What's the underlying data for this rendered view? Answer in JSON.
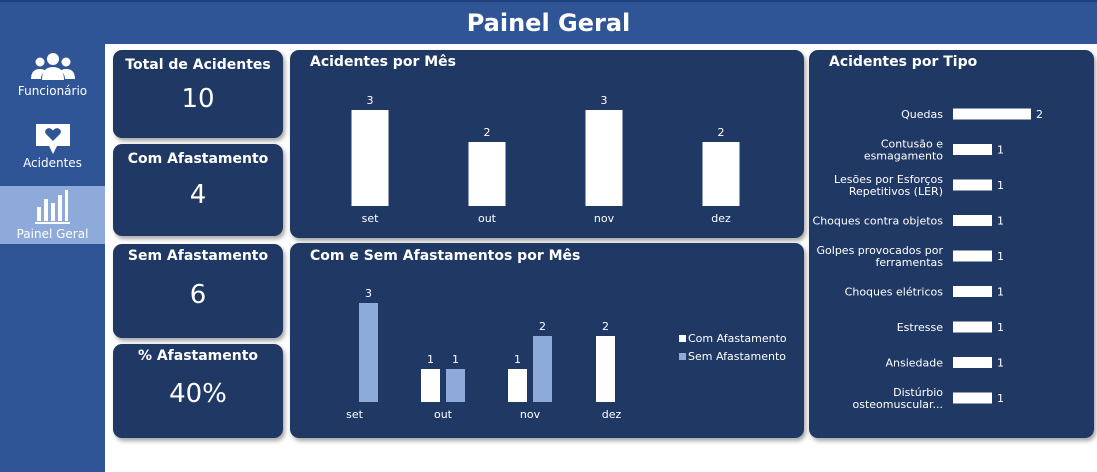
{
  "header": {
    "title": "Painel Geral"
  },
  "sidebar": {
    "items": [
      {
        "label": "Funcionário",
        "icon": "users-icon"
      },
      {
        "label": "Acidentes",
        "icon": "heart-chat-icon"
      },
      {
        "label": "Painel Geral",
        "icon": "bar-chart-icon",
        "active": true
      }
    ]
  },
  "kpis": {
    "total": {
      "title": "Total de Acidentes",
      "value": "10"
    },
    "com": {
      "title": "Com Afastamento",
      "value": "4"
    },
    "sem": {
      "title": "Sem Afastamento",
      "value": "6"
    },
    "pct": {
      "title": "% Afastamento",
      "value": "40%"
    }
  },
  "colors": {
    "header": "#2f5597",
    "card": "#203864",
    "accent_light": "#8eaadb",
    "bar_white": "#ffffff"
  },
  "chart_data": [
    {
      "type": "bar",
      "title": "Acidentes por Mês",
      "categories": [
        "set",
        "out",
        "nov",
        "dez"
      ],
      "values": [
        3,
        2,
        3,
        2
      ],
      "ylim": [
        0,
        3
      ],
      "grid": false
    },
    {
      "type": "bar",
      "title": "Com e Sem Afastamentos por Mês",
      "categories": [
        "set",
        "out",
        "nov",
        "dez"
      ],
      "series": [
        {
          "name": "Com Afastamento",
          "values": [
            null,
            1,
            1,
            2
          ],
          "color": "#ffffff"
        },
        {
          "name": "Sem Afastamento",
          "values": [
            3,
            1,
            2,
            null
          ],
          "color": "#8eaadb"
        }
      ],
      "ylim": [
        0,
        3
      ],
      "legend": "right",
      "grid": false
    },
    {
      "type": "bar",
      "title": "Acidentes por Tipo",
      "orientation": "horizontal",
      "categories": [
        "Quedas",
        "Contusão e esmagamento",
        "Lesões por Esforços Repetitivos (LER)",
        "Choques contra objetos",
        "Golpes provocados por ferramentas",
        "Choques elétricos",
        "Estresse",
        "Ansiedade",
        "Distúrbio osteomuscular..."
      ],
      "values": [
        2,
        1,
        1,
        1,
        1,
        1,
        1,
        1,
        1
      ],
      "xlim": [
        0,
        2
      ],
      "grid": false
    }
  ]
}
